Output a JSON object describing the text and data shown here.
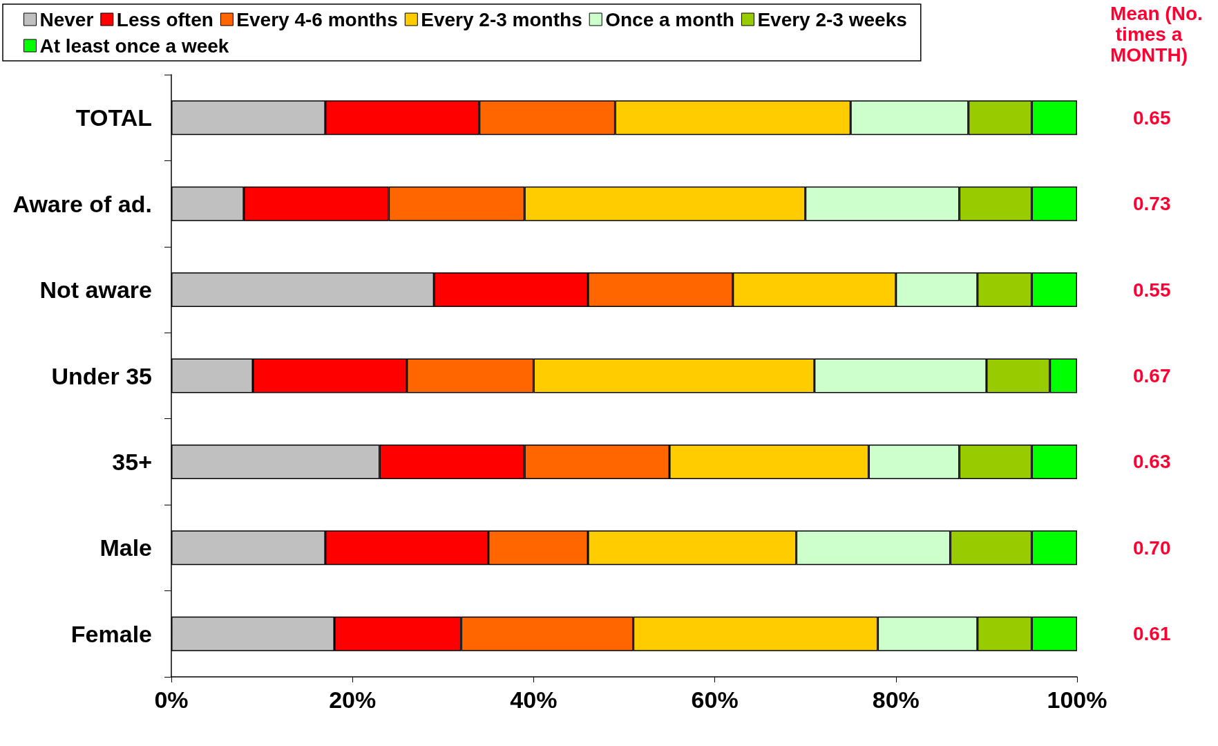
{
  "chart_data": {
    "type": "bar",
    "orientation": "horizontal",
    "stacked": true,
    "legend": "top",
    "grid": false,
    "categories": [
      "TOTAL",
      "Aware of ad.",
      "Not aware",
      "Under 35",
      "35+",
      "Male",
      "Female"
    ],
    "series": [
      {
        "name": "Never",
        "color": "#c0c0c0",
        "values": [
          17,
          8,
          29,
          9,
          23,
          17,
          18
        ]
      },
      {
        "name": "Less often",
        "color": "#ff0000",
        "values": [
          17,
          16,
          17,
          17,
          16,
          18,
          14
        ]
      },
      {
        "name": "Every 4-6 months",
        "color": "#ff6600",
        "values": [
          15,
          15,
          16,
          14,
          16,
          11,
          19
        ]
      },
      {
        "name": "Every 2-3 months",
        "color": "#ffcc00",
        "values": [
          26,
          31,
          18,
          31,
          22,
          23,
          27
        ]
      },
      {
        "name": "Once a month",
        "color": "#ccffcc",
        "values": [
          13,
          17,
          9,
          19,
          10,
          17,
          11
        ]
      },
      {
        "name": "Every 2-3 weeks",
        "color": "#99cc00",
        "values": [
          7,
          8,
          6,
          7,
          8,
          9,
          6
        ]
      },
      {
        "name": "At least once a week",
        "color": "#00ff00",
        "values": [
          5,
          5,
          5,
          3,
          5,
          5,
          5
        ]
      }
    ],
    "xlim": [
      0,
      100
    ],
    "xticks": [
      {
        "value": 0,
        "label": "0%"
      },
      {
        "value": 20,
        "label": "20%"
      },
      {
        "value": 40,
        "label": "40%"
      },
      {
        "value": 60,
        "label": "60%"
      },
      {
        "value": 80,
        "label": "80%"
      },
      {
        "value": 100,
        "label": "100%"
      }
    ],
    "annotations": [
      "Mean (No. times a MONTH)",
      "0.65",
      "0.73",
      "0.55",
      "0.67",
      "0.63",
      "0.70",
      "0.61"
    ]
  }
}
